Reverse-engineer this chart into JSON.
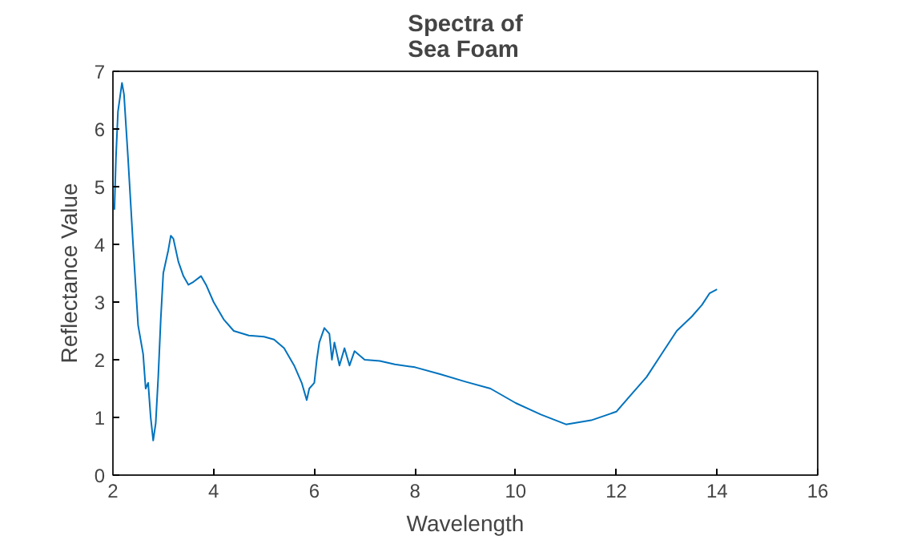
{
  "chart_data": {
    "type": "line",
    "title": "Spectra of\nSea Foam",
    "xlabel": "Wavelength",
    "ylabel": "Reflectance Value",
    "xlim": [
      2,
      16
    ],
    "xticks": [
      2,
      4,
      6,
      8,
      10,
      12,
      14,
      16
    ],
    "ylim": [
      0,
      7
    ],
    "yticks": [
      0,
      1,
      2,
      3,
      4,
      5,
      6,
      7
    ],
    "grid": false,
    "series": [
      {
        "color": "#0072bd",
        "x": [
          2.03,
          2.06,
          2.1,
          2.18,
          2.22,
          2.3,
          2.4,
          2.5,
          2.6,
          2.65,
          2.7,
          2.75,
          2.8,
          2.85,
          2.9,
          2.95,
          3.0,
          3.1,
          3.15,
          3.2,
          3.3,
          3.4,
          3.5,
          3.6,
          3.75,
          3.85,
          4.0,
          4.2,
          4.4,
          4.7,
          5.0,
          5.2,
          5.4,
          5.6,
          5.75,
          5.85,
          5.9,
          6.0,
          6.05,
          6.1,
          6.2,
          6.3,
          6.35,
          6.4,
          6.5,
          6.6,
          6.7,
          6.8,
          7.0,
          7.3,
          7.6,
          8.0,
          8.5,
          9.0,
          9.5,
          10.0,
          10.5,
          11.0,
          11.5,
          12.0,
          12.3,
          12.6,
          12.9,
          13.2,
          13.5,
          13.7,
          13.85,
          14.0
        ],
        "values": [
          4.6,
          5.5,
          6.3,
          6.8,
          6.6,
          5.5,
          4.0,
          2.6,
          2.1,
          1.5,
          1.6,
          1.0,
          0.6,
          0.9,
          1.7,
          2.7,
          3.5,
          3.9,
          4.15,
          4.1,
          3.7,
          3.45,
          3.3,
          3.35,
          3.45,
          3.3,
          3.0,
          2.7,
          2.5,
          2.42,
          2.4,
          2.35,
          2.2,
          1.9,
          1.6,
          1.3,
          1.5,
          1.6,
          2.0,
          2.3,
          2.55,
          2.45,
          2.0,
          2.3,
          1.9,
          2.2,
          1.9,
          2.15,
          2.0,
          1.98,
          1.92,
          1.87,
          1.75,
          1.62,
          1.5,
          1.25,
          1.05,
          0.88,
          0.95,
          1.1,
          1.4,
          1.7,
          2.1,
          2.5,
          2.75,
          2.95,
          3.15,
          3.22
        ]
      }
    ]
  }
}
